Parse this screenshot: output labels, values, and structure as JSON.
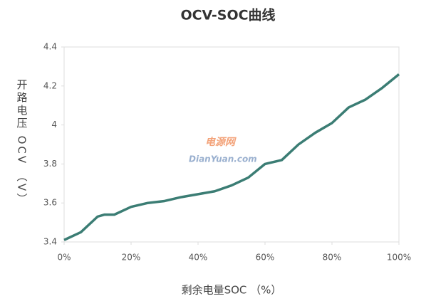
{
  "chart_data": {
    "type": "line",
    "title": "OCV-SOC曲线",
    "y_label": "开路电压 OCV （V）",
    "x_label": "剩余电量SOC （%）",
    "watermark": [
      "电源网",
      "DianYuan.com"
    ],
    "x": [
      0,
      5,
      10,
      12,
      15,
      20,
      25,
      30,
      35,
      40,
      45,
      50,
      55,
      60,
      65,
      70,
      75,
      80,
      85,
      90,
      95,
      100
    ],
    "series": [
      {
        "color": "#3b7d74",
        "values": [
          3.41,
          3.45,
          3.53,
          3.54,
          3.54,
          3.58,
          3.6,
          3.61,
          3.63,
          3.645,
          3.66,
          3.69,
          3.73,
          3.8,
          3.82,
          3.9,
          3.96,
          4.01,
          4.09,
          4.13,
          4.19,
          4.26
        ]
      }
    ],
    "xlim": [
      0,
      100
    ],
    "xticks": [
      {
        "value": 0,
        "label": "0%"
      },
      {
        "value": 20,
        "label": "20%"
      },
      {
        "value": 40,
        "label": "40%"
      },
      {
        "value": 60,
        "label": "60%"
      },
      {
        "value": 80,
        "label": "80%"
      },
      {
        "value": 100,
        "label": "100%"
      }
    ],
    "ylim": [
      3.4,
      4.4
    ],
    "yticks": [
      3.4,
      3.6,
      3.8,
      4,
      4.2,
      4.4
    ],
    "grid": false
  }
}
